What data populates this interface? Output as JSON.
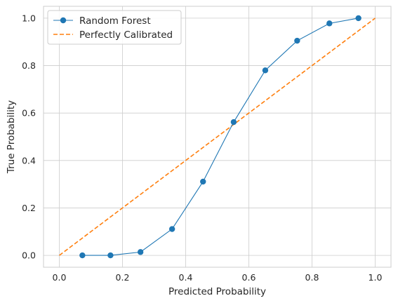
{
  "chart_data": {
    "type": "line",
    "xlabel": "Predicted Probability",
    "ylabel": "True Probability",
    "xlim": [
      -0.05,
      1.05
    ],
    "ylim": [
      -0.05,
      1.05
    ],
    "xticks": [
      0.0,
      0.2,
      0.4,
      0.6,
      0.8,
      1.0
    ],
    "yticks": [
      0.0,
      0.2,
      0.4,
      0.6,
      0.8,
      1.0
    ],
    "xtick_labels": [
      "0.0",
      "0.2",
      "0.4",
      "0.6",
      "0.8",
      "1.0"
    ],
    "ytick_labels": [
      "0.0",
      "0.2",
      "0.4",
      "0.6",
      "0.8",
      "1.0"
    ],
    "grid": true,
    "legend_position": "top-left",
    "series": [
      {
        "name": "Random Forest",
        "style": "solid-with-circle-markers",
        "color": "#1f77b4",
        "x": [
          0.073,
          0.162,
          0.257,
          0.357,
          0.455,
          0.552,
          0.652,
          0.753,
          0.855,
          0.947
        ],
        "y": [
          0.0,
          0.0,
          0.014,
          0.111,
          0.311,
          0.562,
          0.78,
          0.905,
          0.978,
          1.0
        ]
      },
      {
        "name": "Perfectly Calibrated",
        "style": "dashed",
        "color": "#ff7f0e",
        "x": [
          0.0,
          1.0
        ],
        "y": [
          0.0,
          1.0
        ]
      }
    ]
  }
}
